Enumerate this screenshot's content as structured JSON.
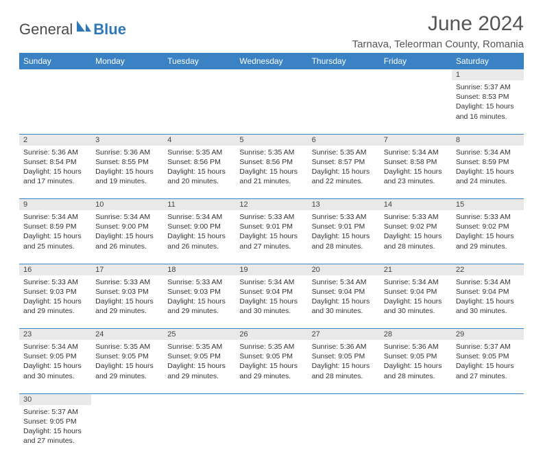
{
  "brand": {
    "general": "General",
    "blue": "Blue"
  },
  "title": "June 2024",
  "location": "Tarnava, Teleorman County, Romania",
  "colors": {
    "header_bg": "#3a82c4",
    "header_text": "#ffffff",
    "daynum_bg": "#e9e9e9",
    "border": "#3a82c4",
    "text": "#333333",
    "title_text": "#555555"
  },
  "day_headers": [
    "Sunday",
    "Monday",
    "Tuesday",
    "Wednesday",
    "Thursday",
    "Friday",
    "Saturday"
  ],
  "weeks": [
    [
      null,
      null,
      null,
      null,
      null,
      null,
      {
        "n": "1",
        "sr": "Sunrise: 5:37 AM",
        "ss": "Sunset: 8:53 PM",
        "d1": "Daylight: 15 hours",
        "d2": "and 16 minutes."
      }
    ],
    [
      {
        "n": "2",
        "sr": "Sunrise: 5:36 AM",
        "ss": "Sunset: 8:54 PM",
        "d1": "Daylight: 15 hours",
        "d2": "and 17 minutes."
      },
      {
        "n": "3",
        "sr": "Sunrise: 5:36 AM",
        "ss": "Sunset: 8:55 PM",
        "d1": "Daylight: 15 hours",
        "d2": "and 19 minutes."
      },
      {
        "n": "4",
        "sr": "Sunrise: 5:35 AM",
        "ss": "Sunset: 8:56 PM",
        "d1": "Daylight: 15 hours",
        "d2": "and 20 minutes."
      },
      {
        "n": "5",
        "sr": "Sunrise: 5:35 AM",
        "ss": "Sunset: 8:56 PM",
        "d1": "Daylight: 15 hours",
        "d2": "and 21 minutes."
      },
      {
        "n": "6",
        "sr": "Sunrise: 5:35 AM",
        "ss": "Sunset: 8:57 PM",
        "d1": "Daylight: 15 hours",
        "d2": "and 22 minutes."
      },
      {
        "n": "7",
        "sr": "Sunrise: 5:34 AM",
        "ss": "Sunset: 8:58 PM",
        "d1": "Daylight: 15 hours",
        "d2": "and 23 minutes."
      },
      {
        "n": "8",
        "sr": "Sunrise: 5:34 AM",
        "ss": "Sunset: 8:59 PM",
        "d1": "Daylight: 15 hours",
        "d2": "and 24 minutes."
      }
    ],
    [
      {
        "n": "9",
        "sr": "Sunrise: 5:34 AM",
        "ss": "Sunset: 8:59 PM",
        "d1": "Daylight: 15 hours",
        "d2": "and 25 minutes."
      },
      {
        "n": "10",
        "sr": "Sunrise: 5:34 AM",
        "ss": "Sunset: 9:00 PM",
        "d1": "Daylight: 15 hours",
        "d2": "and 26 minutes."
      },
      {
        "n": "11",
        "sr": "Sunrise: 5:34 AM",
        "ss": "Sunset: 9:00 PM",
        "d1": "Daylight: 15 hours",
        "d2": "and 26 minutes."
      },
      {
        "n": "12",
        "sr": "Sunrise: 5:33 AM",
        "ss": "Sunset: 9:01 PM",
        "d1": "Daylight: 15 hours",
        "d2": "and 27 minutes."
      },
      {
        "n": "13",
        "sr": "Sunrise: 5:33 AM",
        "ss": "Sunset: 9:01 PM",
        "d1": "Daylight: 15 hours",
        "d2": "and 28 minutes."
      },
      {
        "n": "14",
        "sr": "Sunrise: 5:33 AM",
        "ss": "Sunset: 9:02 PM",
        "d1": "Daylight: 15 hours",
        "d2": "and 28 minutes."
      },
      {
        "n": "15",
        "sr": "Sunrise: 5:33 AM",
        "ss": "Sunset: 9:02 PM",
        "d1": "Daylight: 15 hours",
        "d2": "and 29 minutes."
      }
    ],
    [
      {
        "n": "16",
        "sr": "Sunrise: 5:33 AM",
        "ss": "Sunset: 9:03 PM",
        "d1": "Daylight: 15 hours",
        "d2": "and 29 minutes."
      },
      {
        "n": "17",
        "sr": "Sunrise: 5:33 AM",
        "ss": "Sunset: 9:03 PM",
        "d1": "Daylight: 15 hours",
        "d2": "and 29 minutes."
      },
      {
        "n": "18",
        "sr": "Sunrise: 5:33 AM",
        "ss": "Sunset: 9:03 PM",
        "d1": "Daylight: 15 hours",
        "d2": "and 29 minutes."
      },
      {
        "n": "19",
        "sr": "Sunrise: 5:34 AM",
        "ss": "Sunset: 9:04 PM",
        "d1": "Daylight: 15 hours",
        "d2": "and 30 minutes."
      },
      {
        "n": "20",
        "sr": "Sunrise: 5:34 AM",
        "ss": "Sunset: 9:04 PM",
        "d1": "Daylight: 15 hours",
        "d2": "and 30 minutes."
      },
      {
        "n": "21",
        "sr": "Sunrise: 5:34 AM",
        "ss": "Sunset: 9:04 PM",
        "d1": "Daylight: 15 hours",
        "d2": "and 30 minutes."
      },
      {
        "n": "22",
        "sr": "Sunrise: 5:34 AM",
        "ss": "Sunset: 9:04 PM",
        "d1": "Daylight: 15 hours",
        "d2": "and 30 minutes."
      }
    ],
    [
      {
        "n": "23",
        "sr": "Sunrise: 5:34 AM",
        "ss": "Sunset: 9:05 PM",
        "d1": "Daylight: 15 hours",
        "d2": "and 30 minutes."
      },
      {
        "n": "24",
        "sr": "Sunrise: 5:35 AM",
        "ss": "Sunset: 9:05 PM",
        "d1": "Daylight: 15 hours",
        "d2": "and 29 minutes."
      },
      {
        "n": "25",
        "sr": "Sunrise: 5:35 AM",
        "ss": "Sunset: 9:05 PM",
        "d1": "Daylight: 15 hours",
        "d2": "and 29 minutes."
      },
      {
        "n": "26",
        "sr": "Sunrise: 5:35 AM",
        "ss": "Sunset: 9:05 PM",
        "d1": "Daylight: 15 hours",
        "d2": "and 29 minutes."
      },
      {
        "n": "27",
        "sr": "Sunrise: 5:36 AM",
        "ss": "Sunset: 9:05 PM",
        "d1": "Daylight: 15 hours",
        "d2": "and 28 minutes."
      },
      {
        "n": "28",
        "sr": "Sunrise: 5:36 AM",
        "ss": "Sunset: 9:05 PM",
        "d1": "Daylight: 15 hours",
        "d2": "and 28 minutes."
      },
      {
        "n": "29",
        "sr": "Sunrise: 5:37 AM",
        "ss": "Sunset: 9:05 PM",
        "d1": "Daylight: 15 hours",
        "d2": "and 27 minutes."
      }
    ],
    [
      {
        "n": "30",
        "sr": "Sunrise: 5:37 AM",
        "ss": "Sunset: 9:05 PM",
        "d1": "Daylight: 15 hours",
        "d2": "and 27 minutes."
      },
      null,
      null,
      null,
      null,
      null,
      null
    ]
  ]
}
